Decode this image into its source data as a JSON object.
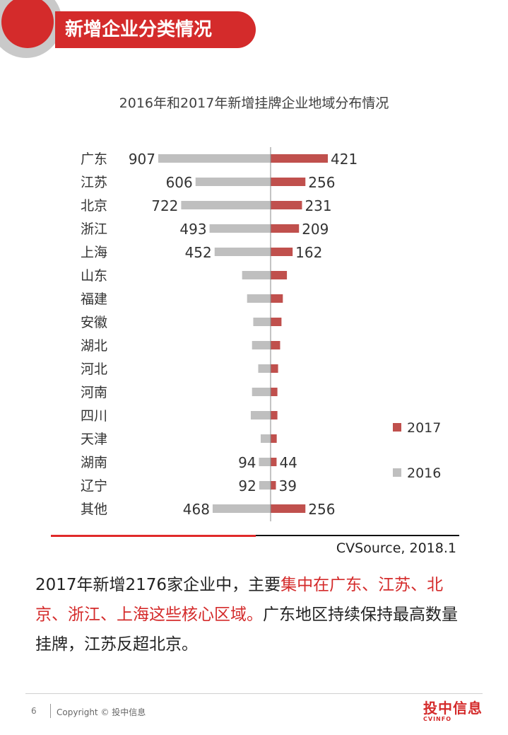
{
  "header": {
    "title": "新增企业分类情况"
  },
  "chart_data": {
    "type": "bar",
    "orientation": "horizontal-diverging",
    "title": "2016年和2017年新增挂牌企业地域分布情况",
    "categories": [
      "广东",
      "江苏",
      "北京",
      "浙江",
      "上海",
      "山东",
      "福建",
      "安徽",
      "湖北",
      "河北",
      "河南",
      "四川",
      "天津",
      "湖南",
      "辽宁",
      "其他"
    ],
    "series": [
      {
        "name": "2016",
        "color": "#bfbfbf",
        "values": [
          907,
          606,
          722,
          493,
          452,
          230,
          190,
          140,
          150,
          100,
          150,
          160,
          80,
          94,
          92,
          468
        ],
        "labels": [
          "907",
          "606",
          "722",
          "493",
          "452",
          "",
          "",
          "",
          "",
          "",
          "",
          "",
          "",
          "94",
          "92",
          "468"
        ]
      },
      {
        "name": "2017",
        "color": "#c0504d",
        "values": [
          421,
          256,
          231,
          209,
          162,
          120,
          90,
          80,
          70,
          55,
          50,
          50,
          45,
          44,
          39,
          256
        ],
        "labels": [
          "421",
          "256",
          "231",
          "209",
          "162",
          "",
          "",
          "",
          "",
          "",
          "",
          "",
          "",
          "44",
          "39",
          "256"
        ]
      }
    ],
    "legend": [
      "2017",
      "2016"
    ],
    "legend_position": "right",
    "grid": false
  },
  "source": "CVSource, 2018.1",
  "summary": {
    "part1": "2017年新增2176家企业中，主要",
    "highlight": "集中在广东、江苏、北京、浙江、上海这些核心区域。",
    "part2": "广东地区持续保持最高数量挂牌，江苏反超北京。"
  },
  "footer": {
    "page_number": "6",
    "copyright": "Copyright © 投中信息",
    "logo_main": "投中信息",
    "logo_sub": "CVINFO"
  }
}
